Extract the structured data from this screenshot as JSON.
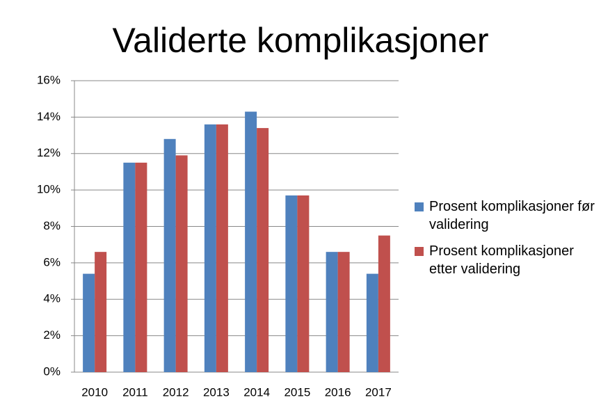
{
  "chart_data": {
    "type": "bar",
    "title": "Validerte komplikasjoner",
    "categories": [
      "2010",
      "2011",
      "2012",
      "2013",
      "2014",
      "2015",
      "2016",
      "2017"
    ],
    "series": [
      {
        "name": "Prosent komplikasjoner før validering",
        "color": "#4f81bd",
        "values": [
          5.4,
          11.5,
          12.8,
          13.6,
          14.3,
          9.7,
          6.6,
          5.4
        ]
      },
      {
        "name": "Prosent komplikasjoner etter validering",
        "color": "#c0504d",
        "values": [
          6.6,
          11.5,
          11.9,
          13.6,
          13.4,
          9.7,
          6.6,
          7.5
        ]
      }
    ],
    "ylim": [
      0,
      16
    ],
    "yticks": [
      {
        "value": 0,
        "label": "0%"
      },
      {
        "value": 2,
        "label": "2%"
      },
      {
        "value": 4,
        "label": "4%"
      },
      {
        "value": 6,
        "label": "6%"
      },
      {
        "value": 8,
        "label": "8%"
      },
      {
        "value": 10,
        "label": "10%"
      },
      {
        "value": 12,
        "label": "12%"
      },
      {
        "value": 14,
        "label": "14%"
      },
      {
        "value": 16,
        "label": "16%"
      }
    ],
    "grid": true,
    "legend": "right"
  }
}
